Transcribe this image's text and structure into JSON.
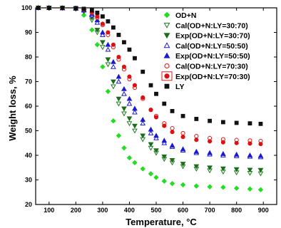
{
  "chart_data": {
    "type": "scatter",
    "xlabel": "Temperature, °C",
    "ylabel": "Weight loss, %",
    "xlim": [
      50,
      950
    ],
    "ylim": [
      20,
      100
    ],
    "xticks": [
      100,
      200,
      300,
      400,
      500,
      600,
      700,
      800,
      900
    ],
    "yticks": [
      20,
      30,
      40,
      50,
      60,
      70,
      80,
      90,
      100
    ],
    "grid": false,
    "legend_position": "top-right",
    "x": [
      60,
      100,
      150,
      200,
      230,
      260,
      280,
      300,
      320,
      340,
      360,
      380,
      400,
      420,
      450,
      480,
      500,
      530,
      560,
      600,
      650,
      700,
      750,
      800,
      850,
      890
    ],
    "series": [
      {
        "name": "OD+N",
        "marker": "diamond",
        "filled": true,
        "color": "#22dd22",
        "values": [
          100,
          100,
          99.9,
          99.5,
          97,
          91,
          85,
          76,
          66,
          54,
          48,
          43,
          39,
          37,
          34.5,
          32.5,
          31,
          29.5,
          28.5,
          28,
          27.5,
          27.2,
          27,
          26.6,
          26.3,
          26
        ]
      },
      {
        "name": "Cal(OD+N:LY=30:70)",
        "marker": "triangle-down",
        "filled": false,
        "color": "#1e7a1e",
        "values": [
          100,
          100,
          99.9,
          99.6,
          98.5,
          95,
          90,
          84,
          77,
          68,
          61,
          57,
          53,
          50,
          46.5,
          43,
          41,
          38.5,
          37,
          35.5,
          34.5,
          33.8,
          33.3,
          33,
          32.8,
          32.6
        ]
      },
      {
        "name": "Exp(OD+N:LY=30:70)",
        "marker": "triangle-down",
        "filled": true,
        "color": "#1a6e1a",
        "values": [
          100,
          100,
          99.9,
          99.7,
          98.8,
          96,
          91,
          86,
          79,
          70,
          63,
          59,
          55,
          52,
          48,
          44.5,
          42,
          39.5,
          38,
          36.5,
          35.5,
          35,
          34.6,
          34.3,
          34.1,
          34
        ]
      },
      {
        "name": "Cal(OD+N:LY=50:50)",
        "marker": "triangle-up",
        "filled": false,
        "color": "#1a1acc",
        "values": [
          100,
          100,
          99.9,
          99.7,
          99,
          97,
          94,
          89,
          83,
          76,
          70,
          65,
          61,
          57.5,
          53,
          49,
          47,
          45,
          43.5,
          42,
          41,
          40.4,
          40,
          39.7,
          39.5,
          39.3
        ]
      },
      {
        "name": "Exp(OD+N:LY=50:50)",
        "marker": "triangle-up",
        "filled": true,
        "color": "#1a1acc",
        "values": [
          100,
          100,
          99.9,
          99.8,
          99.2,
          97.5,
          95,
          90,
          85,
          78,
          72,
          67,
          63,
          59,
          54.5,
          50.5,
          48,
          46,
          44,
          42.5,
          41.5,
          41,
          40.6,
          40.3,
          40,
          39.8
        ]
      },
      {
        "name": "Cal(OD+N:LY=70:30)",
        "marker": "circle",
        "filled": false,
        "color": "#dd1111",
        "values": [
          100,
          100,
          99.9,
          99.8,
          99.3,
          98,
          96,
          93,
          89,
          84,
          79,
          75,
          71,
          67.5,
          63,
          58.5,
          56,
          53,
          51,
          49,
          47.8,
          47,
          46.5,
          46.2,
          46,
          45.8
        ]
      },
      {
        "name": "Exp(OD+N:LY=70:30)",
        "marker": "circle",
        "filled": true,
        "color": "#dd1111",
        "values": [
          100,
          100,
          99.9,
          99.8,
          99.4,
          98.3,
          96.5,
          93.5,
          90,
          85,
          80,
          76,
          72,
          68.5,
          63.5,
          58.5,
          55.5,
          52,
          49.5,
          47.5,
          46.3,
          45.7,
          45.3,
          45,
          44.8,
          44.6
        ]
      },
      {
        "name": "LY",
        "marker": "square",
        "filled": true,
        "color": "#111111",
        "values": [
          100,
          100,
          100,
          99.9,
          99.6,
          99,
          98,
          96.5,
          94.5,
          92,
          89,
          86,
          83,
          79.5,
          74,
          68.5,
          65,
          61,
          58,
          56,
          54.8,
          54,
          53.5,
          53.2,
          53,
          52.8
        ]
      }
    ],
    "legend_highlight": "Exp(OD+N:LY=70:30)",
    "highlight_color": "#cc2222"
  }
}
